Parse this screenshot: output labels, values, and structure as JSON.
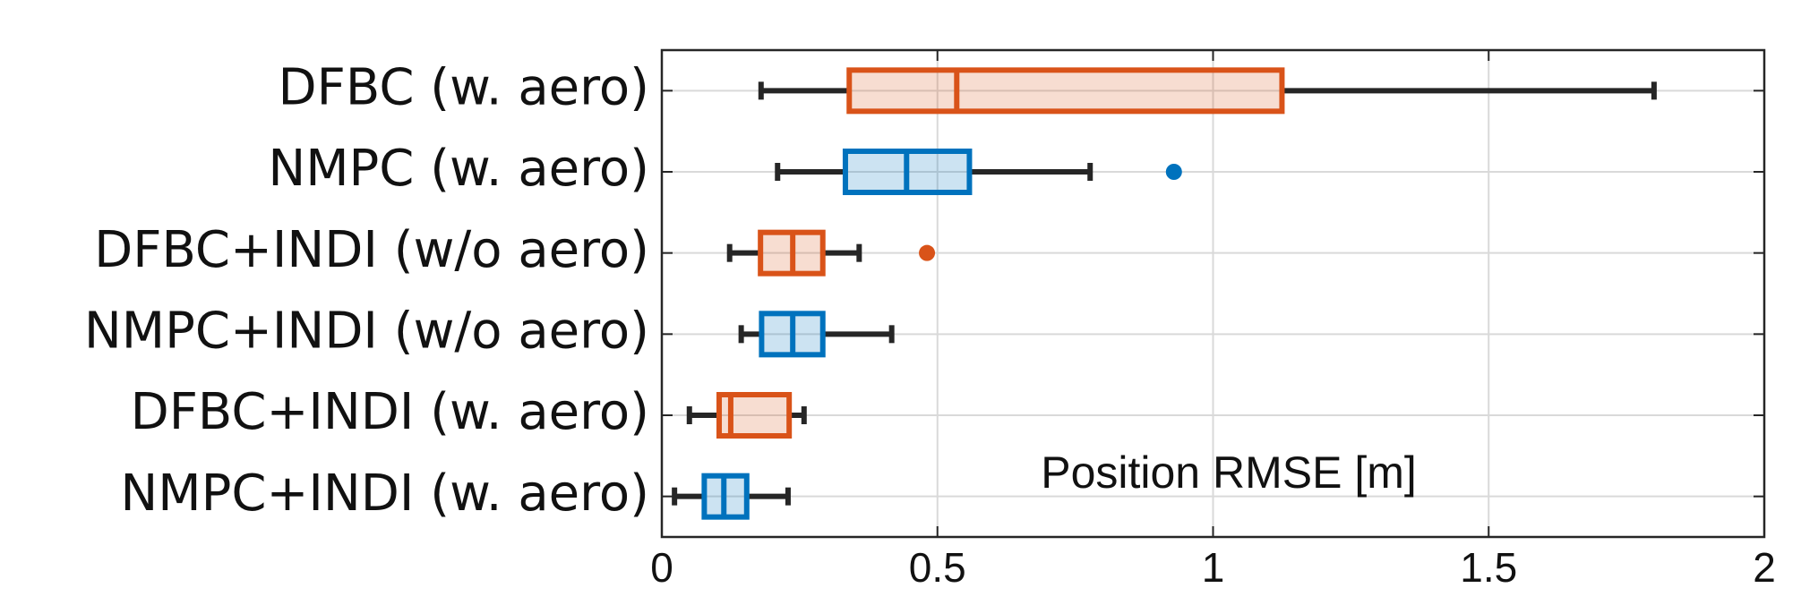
{
  "chart_data": {
    "type": "boxplot",
    "orientation": "horizontal",
    "xlabel": "Position RMSE [m]",
    "categories": [
      "DFBC (w. aero)",
      "NMPC (w. aero)",
      "DFBC+INDI (w/o aero)",
      "NMPC+INDI (w/o aero)",
      "DFBC+INDI (w. aero)",
      "NMPC+INDI (w. aero)"
    ],
    "boxes": [
      {
        "color": "#d95319",
        "whisker_low": 0.18,
        "q1": 0.34,
        "median": 0.535,
        "q3": 1.125,
        "whisker_high": 1.8,
        "outliers": []
      },
      {
        "color": "#0072bd",
        "whisker_low": 0.21,
        "q1": 0.333,
        "median": 0.444,
        "q3": 0.558,
        "whisker_high": 0.777,
        "outliers": [
          0.929
        ]
      },
      {
        "color": "#d95319",
        "whisker_low": 0.123,
        "q1": 0.179,
        "median": 0.2375,
        "q3": 0.292,
        "whisker_high": 0.358,
        "outliers": [
          0.481
        ]
      },
      {
        "color": "#0072bd",
        "whisker_low": 0.144,
        "q1": 0.181,
        "median": 0.2375,
        "q3": 0.292,
        "whisker_high": 0.417,
        "outliers": []
      },
      {
        "color": "#d95319",
        "whisker_low": 0.05,
        "q1": 0.104,
        "median": 0.125,
        "q3": 0.231,
        "whisker_high": 0.258,
        "outliers": []
      },
      {
        "color": "#0072bd",
        "whisker_low": 0.023,
        "q1": 0.077,
        "median": 0.1125,
        "q3": 0.154,
        "whisker_high": 0.229,
        "outliers": []
      }
    ],
    "xlim": [
      0,
      2
    ],
    "xticks": [
      0,
      0.5,
      1,
      1.5,
      2
    ],
    "grid": true
  }
}
